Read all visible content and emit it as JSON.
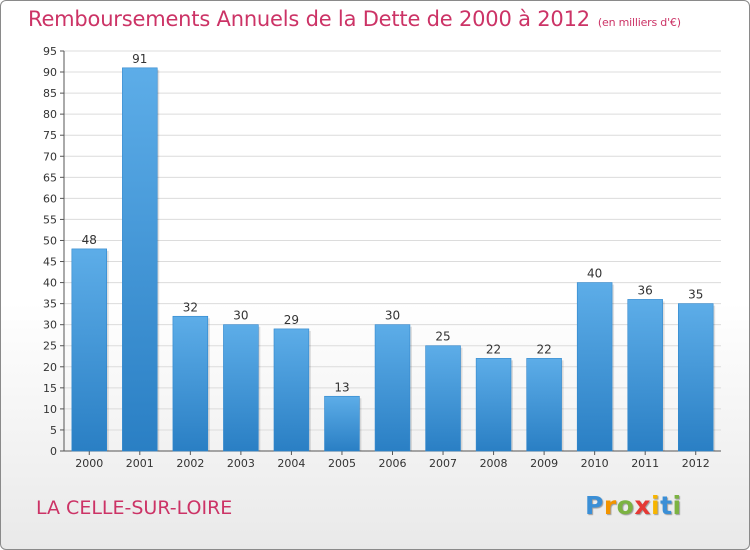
{
  "chart_data": {
    "type": "bar",
    "title": "Remboursements Annuels de la Dette de 2000 à 2012",
    "subtitle": "(en milliers d'€)",
    "xlabel": "",
    "ylabel": "",
    "categories": [
      "2000",
      "2001",
      "2002",
      "2003",
      "2004",
      "2005",
      "2006",
      "2007",
      "2008",
      "2009",
      "2010",
      "2011",
      "2012"
    ],
    "values": [
      48,
      91,
      32,
      30,
      29,
      13,
      30,
      25,
      22,
      22,
      40,
      36,
      35
    ],
    "ylim": [
      0,
      95
    ],
    "yticks": [
      "0",
      "5",
      "10",
      "15",
      "20",
      "25",
      "30",
      "35",
      "40",
      "45",
      "50",
      "55",
      "60",
      "65",
      "70",
      "75",
      "80",
      "85",
      "90",
      "95"
    ],
    "grid": true,
    "legend": "none",
    "colors": {
      "bar_light": "#5dade8",
      "bar_dark": "#2a7fc4",
      "grid": "#dcdcdc",
      "title": "#cc3366"
    }
  },
  "commune": "LA CELLE-SUR-LOIRE",
  "brand": {
    "letters": [
      "P",
      "r",
      "o",
      "x",
      "i",
      "t",
      "i"
    ],
    "colors": [
      "#3b8fd6",
      "#f29400",
      "#7cb342",
      "#e53935",
      "#f7b500",
      "#3b8fd6",
      "#7cb342"
    ]
  }
}
